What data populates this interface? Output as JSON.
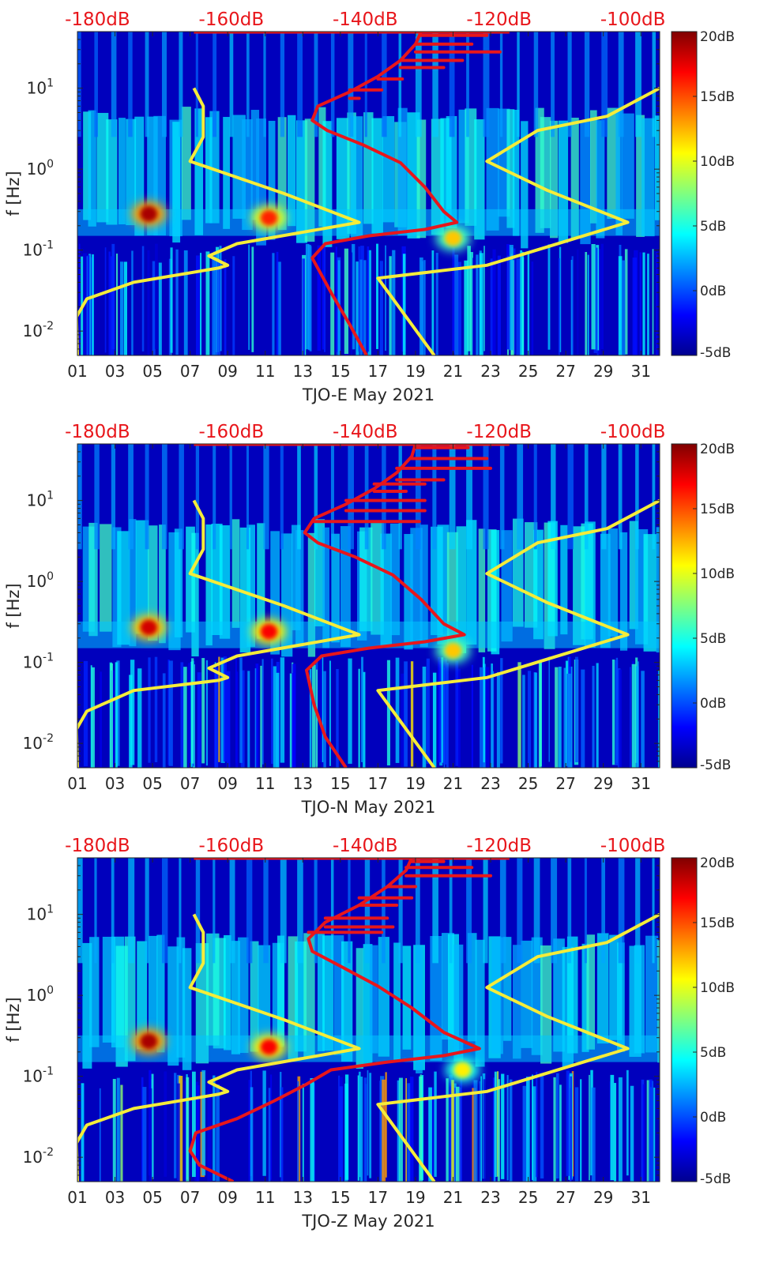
{
  "chart_data": [
    {
      "type": "heatmap",
      "xlabel": "TJO-E May 2021",
      "ylabel": "f [Hz]",
      "x_ticks": [
        "01",
        "03",
        "05",
        "07",
        "09",
        "11",
        "13",
        "15",
        "17",
        "19",
        "21",
        "23",
        "25",
        "27",
        "29",
        "31"
      ],
      "y_ticks": [
        {
          "value": 0.01,
          "base": "10",
          "exp": "-2"
        },
        {
          "value": 0.1,
          "base": "10",
          "exp": "-1"
        },
        {
          "value": 1,
          "base": "10",
          "exp": "0"
        },
        {
          "value": 10,
          "base": "10",
          "exp": "1"
        }
      ],
      "top_ticks": [
        "-180dB",
        "-160dB",
        "-140dB",
        "-120dB",
        "-100dB"
      ],
      "colorbar_ticks": [
        "20dB",
        "15dB",
        "10dB",
        "5dB",
        "0dB",
        "-5dB"
      ],
      "colorbar_range": [
        -5,
        20
      ],
      "colormap": "jet",
      "xlim": [
        1,
        32
      ],
      "ylim": [
        0.005,
        50
      ],
      "yscale": "log",
      "top_xlim": [
        -183,
        -96
      ],
      "red_curve": [
        {
          "day": 16.4,
          "f": 0.005
        },
        {
          "day": 15.5,
          "f": 0.012
        },
        {
          "day": 14.5,
          "f": 0.03
        },
        {
          "day": 13.5,
          "f": 0.08
        },
        {
          "day": 14.2,
          "f": 0.12
        },
        {
          "day": 16.5,
          "f": 0.15
        },
        {
          "day": 19.5,
          "f": 0.18
        },
        {
          "day": 21.2,
          "f": 0.22
        },
        {
          "day": 20.5,
          "f": 0.3
        },
        {
          "day": 19.5,
          "f": 0.6
        },
        {
          "day": 18.2,
          "f": 1.2
        },
        {
          "day": 16.2,
          "f": 2
        },
        {
          "day": 14.3,
          "f": 3
        },
        {
          "day": 13.5,
          "f": 4
        },
        {
          "day": 13.8,
          "f": 6
        },
        {
          "day": 15.5,
          "f": 9
        },
        {
          "day": 17.0,
          "f": 14
        },
        {
          "day": 18.2,
          "f": 22
        },
        {
          "day": 19.0,
          "f": 35
        },
        {
          "day": 19.3,
          "f": 50
        }
      ],
      "red_spikes": [
        {
          "f": 7.5,
          "day_end": 16.0
        },
        {
          "f": 9.5,
          "day_end": 17.2
        },
        {
          "f": 13,
          "day_end": 18.3
        },
        {
          "f": 18,
          "day_end": 20.5
        },
        {
          "f": 22,
          "day_end": 21.5
        },
        {
          "f": 28,
          "day_end": 23.5
        },
        {
          "f": 35,
          "day_end": 22.0
        },
        {
          "f": 45,
          "day_end": 22.8
        }
      ],
      "yellow_left": [
        {
          "day": 1.0,
          "f": 0.005
        },
        {
          "day": 0.95,
          "f": 0.015
        },
        {
          "day": 1.5,
          "f": 0.025
        },
        {
          "day": 4.0,
          "f": 0.04
        },
        {
          "day": 8.5,
          "f": 0.06
        },
        {
          "day": 9.0,
          "f": 0.065
        },
        {
          "day": 8.0,
          "f": 0.085
        },
        {
          "day": 9.5,
          "f": 0.12
        },
        {
          "day": 16.0,
          "f": 0.22
        },
        {
          "day": 12.0,
          "f": 0.5
        },
        {
          "day": 7.0,
          "f": 1.25
        },
        {
          "day": 7.7,
          "f": 2.5
        },
        {
          "day": 7.7,
          "f": 6
        },
        {
          "day": 7.2,
          "f": 10
        }
      ],
      "yellow_right": [
        {
          "day": 20.0,
          "f": 0.005
        },
        {
          "day": 17.0,
          "f": 0.045
        },
        {
          "day": 22.8,
          "f": 0.065
        },
        {
          "day": 30.3,
          "f": 0.22
        },
        {
          "day": 26.0,
          "f": 0.55
        },
        {
          "day": 22.8,
          "f": 1.25
        },
        {
          "day": 25.5,
          "f": 3.0
        },
        {
          "day": 29.2,
          "f": 4.5
        },
        {
          "day": 32.0,
          "f": 10
        }
      ],
      "hotspots": [
        {
          "day": 4.8,
          "f": 0.28,
          "level": 19
        },
        {
          "day": 11.2,
          "f": 0.25,
          "level": 16
        },
        {
          "day": 21.0,
          "f": 0.14,
          "level": 12
        }
      ]
    },
    {
      "type": "heatmap",
      "xlabel": "TJO-N May 2021",
      "ylabel": "f [Hz]",
      "x_ticks": [
        "01",
        "03",
        "05",
        "07",
        "09",
        "11",
        "13",
        "15",
        "17",
        "19",
        "21",
        "23",
        "25",
        "27",
        "29",
        "31"
      ],
      "y_ticks": [
        {
          "value": 0.01,
          "base": "10",
          "exp": "-2"
        },
        {
          "value": 0.1,
          "base": "10",
          "exp": "-1"
        },
        {
          "value": 1,
          "base": "10",
          "exp": "0"
        },
        {
          "value": 10,
          "base": "10",
          "exp": "1"
        }
      ],
      "top_ticks": [
        "-180dB",
        "-160dB",
        "-140dB",
        "-120dB",
        "-100dB"
      ],
      "colorbar_ticks": [
        "20dB",
        "15dB",
        "10dB",
        "5dB",
        "0dB",
        "-5dB"
      ],
      "colorbar_range": [
        -5,
        20
      ],
      "colormap": "jet",
      "xlim": [
        1,
        32
      ],
      "ylim": [
        0.005,
        50
      ],
      "yscale": "log",
      "top_xlim": [
        -183,
        -96
      ],
      "red_curve": [
        {
          "day": 15.3,
          "f": 0.005
        },
        {
          "day": 14.2,
          "f": 0.012
        },
        {
          "day": 13.6,
          "f": 0.03
        },
        {
          "day": 13.2,
          "f": 0.08
        },
        {
          "day": 14.0,
          "f": 0.12
        },
        {
          "day": 16.5,
          "f": 0.15
        },
        {
          "day": 19.5,
          "f": 0.18
        },
        {
          "day": 21.6,
          "f": 0.22
        },
        {
          "day": 20.5,
          "f": 0.3
        },
        {
          "day": 19.3,
          "f": 0.6
        },
        {
          "day": 17.8,
          "f": 1.2
        },
        {
          "day": 15.8,
          "f": 2
        },
        {
          "day": 13.8,
          "f": 3
        },
        {
          "day": 13.1,
          "f": 4
        },
        {
          "day": 13.6,
          "f": 6
        },
        {
          "day": 15.3,
          "f": 9
        },
        {
          "day": 16.8,
          "f": 14
        },
        {
          "day": 18.0,
          "f": 22
        },
        {
          "day": 18.8,
          "f": 35
        },
        {
          "day": 19.0,
          "f": 50
        }
      ],
      "red_spikes": [
        {
          "f": 5.5,
          "day_end": 19.2
        },
        {
          "f": 7.5,
          "day_end": 19.5
        },
        {
          "f": 10,
          "day_end": 19.5
        },
        {
          "f": 13,
          "day_end": 18.5
        },
        {
          "f": 16,
          "day_end": 19.5
        },
        {
          "f": 18,
          "day_end": 20.5
        },
        {
          "f": 25,
          "day_end": 23.0
        },
        {
          "f": 33,
          "day_end": 22.8
        },
        {
          "f": 45,
          "day_end": 21.8
        }
      ],
      "yellow_left": [
        {
          "day": 1.0,
          "f": 0.005
        },
        {
          "day": 0.95,
          "f": 0.015
        },
        {
          "day": 1.5,
          "f": 0.025
        },
        {
          "day": 4.0,
          "f": 0.045
        },
        {
          "day": 8.5,
          "f": 0.06
        },
        {
          "day": 9.0,
          "f": 0.065
        },
        {
          "day": 8.0,
          "f": 0.085
        },
        {
          "day": 9.5,
          "f": 0.12
        },
        {
          "day": 16.0,
          "f": 0.22
        },
        {
          "day": 12.0,
          "f": 0.5
        },
        {
          "day": 7.0,
          "f": 1.25
        },
        {
          "day": 7.7,
          "f": 2.5
        },
        {
          "day": 7.7,
          "f": 6
        },
        {
          "day": 7.2,
          "f": 10
        }
      ],
      "yellow_right": [
        {
          "day": 20.0,
          "f": 0.005
        },
        {
          "day": 17.0,
          "f": 0.045
        },
        {
          "day": 22.8,
          "f": 0.065
        },
        {
          "day": 30.3,
          "f": 0.22
        },
        {
          "day": 26.0,
          "f": 0.55
        },
        {
          "day": 22.8,
          "f": 1.25
        },
        {
          "day": 25.5,
          "f": 3.0
        },
        {
          "day": 29.2,
          "f": 4.5
        },
        {
          "day": 32.0,
          "f": 10
        }
      ],
      "hotspots": [
        {
          "day": 4.8,
          "f": 0.27,
          "level": 18
        },
        {
          "day": 11.2,
          "f": 0.24,
          "level": 17
        },
        {
          "day": 21.0,
          "f": 0.14,
          "level": 12
        }
      ]
    },
    {
      "type": "heatmap",
      "xlabel": "TJO-Z May 2021",
      "ylabel": "f [Hz]",
      "x_ticks": [
        "01",
        "03",
        "05",
        "07",
        "09",
        "11",
        "13",
        "15",
        "17",
        "19",
        "21",
        "23",
        "25",
        "27",
        "29",
        "31"
      ],
      "y_ticks": [
        {
          "value": 0.01,
          "base": "10",
          "exp": "-2"
        },
        {
          "value": 0.1,
          "base": "10",
          "exp": "-1"
        },
        {
          "value": 1,
          "base": "10",
          "exp": "0"
        },
        {
          "value": 10,
          "base": "10",
          "exp": "1"
        }
      ],
      "top_ticks": [
        "-180dB",
        "-160dB",
        "-140dB",
        "-120dB",
        "-100dB"
      ],
      "colorbar_ticks": [
        "20dB",
        "15dB",
        "10dB",
        "5dB",
        "0dB",
        "-5dB"
      ],
      "colorbar_range": [
        -5,
        20
      ],
      "colormap": "jet",
      "xlim": [
        1,
        32
      ],
      "ylim": [
        0.005,
        50
      ],
      "yscale": "log",
      "top_xlim": [
        -183,
        -96
      ],
      "red_curve": [
        {
          "day": 9.3,
          "f": 0.005
        },
        {
          "day": 7.5,
          "f": 0.008
        },
        {
          "day": 7.0,
          "f": 0.012
        },
        {
          "day": 7.3,
          "f": 0.02
        },
        {
          "day": 9.5,
          "f": 0.03
        },
        {
          "day": 11.5,
          "f": 0.05
        },
        {
          "day": 13.2,
          "f": 0.08
        },
        {
          "day": 14.5,
          "f": 0.12
        },
        {
          "day": 17.5,
          "f": 0.15
        },
        {
          "day": 20.5,
          "f": 0.18
        },
        {
          "day": 22.4,
          "f": 0.22
        },
        {
          "day": 20.5,
          "f": 0.35
        },
        {
          "day": 18.8,
          "f": 0.7
        },
        {
          "day": 17.0,
          "f": 1.3
        },
        {
          "day": 15.0,
          "f": 2.3
        },
        {
          "day": 13.5,
          "f": 3.5
        },
        {
          "day": 13.3,
          "f": 5
        },
        {
          "day": 14.2,
          "f": 8
        },
        {
          "day": 16.0,
          "f": 13
        },
        {
          "day": 17.5,
          "f": 22
        },
        {
          "day": 18.5,
          "f": 35
        },
        {
          "day": 18.8,
          "f": 50
        }
      ],
      "red_spikes": [
        {
          "f": 6,
          "day_end": 17.2
        },
        {
          "f": 7,
          "day_end": 17.8
        },
        {
          "f": 9,
          "day_end": 17.5
        },
        {
          "f": 13,
          "day_end": 18.0
        },
        {
          "f": 16,
          "day_end": 18.8
        },
        {
          "f": 22,
          "day_end": 19.0
        },
        {
          "f": 30,
          "day_end": 23.0
        },
        {
          "f": 38,
          "day_end": 22.0
        },
        {
          "f": 45,
          "day_end": 20.5
        }
      ],
      "yellow_left": [
        {
          "day": 1.0,
          "f": 0.005
        },
        {
          "day": 0.95,
          "f": 0.015
        },
        {
          "day": 1.5,
          "f": 0.025
        },
        {
          "day": 4.0,
          "f": 0.04
        },
        {
          "day": 8.5,
          "f": 0.06
        },
        {
          "day": 9.0,
          "f": 0.065
        },
        {
          "day": 8.0,
          "f": 0.085
        },
        {
          "day": 9.5,
          "f": 0.12
        },
        {
          "day": 16.0,
          "f": 0.22
        },
        {
          "day": 12.0,
          "f": 0.5
        },
        {
          "day": 7.0,
          "f": 1.25
        },
        {
          "day": 7.7,
          "f": 2.5
        },
        {
          "day": 7.7,
          "f": 6
        },
        {
          "day": 7.2,
          "f": 10
        }
      ],
      "yellow_right": [
        {
          "day": 20.0,
          "f": 0.005
        },
        {
          "day": 17.0,
          "f": 0.045
        },
        {
          "day": 22.8,
          "f": 0.065
        },
        {
          "day": 30.3,
          "f": 0.22
        },
        {
          "day": 26.0,
          "f": 0.55
        },
        {
          "day": 22.8,
          "f": 1.25
        },
        {
          "day": 25.5,
          "f": 3.0
        },
        {
          "day": 29.2,
          "f": 4.5
        },
        {
          "day": 32.0,
          "f": 10
        }
      ],
      "hotspots": [
        {
          "day": 4.8,
          "f": 0.27,
          "level": 19
        },
        {
          "day": 11.2,
          "f": 0.23,
          "level": 17
        },
        {
          "day": 21.5,
          "f": 0.12,
          "level": 11
        }
      ]
    }
  ],
  "colors": {
    "red_curve": "#e8161b",
    "yellow_curve": "#f5ec3a",
    "top_labels": "#e8161b",
    "axis": "#262626"
  }
}
